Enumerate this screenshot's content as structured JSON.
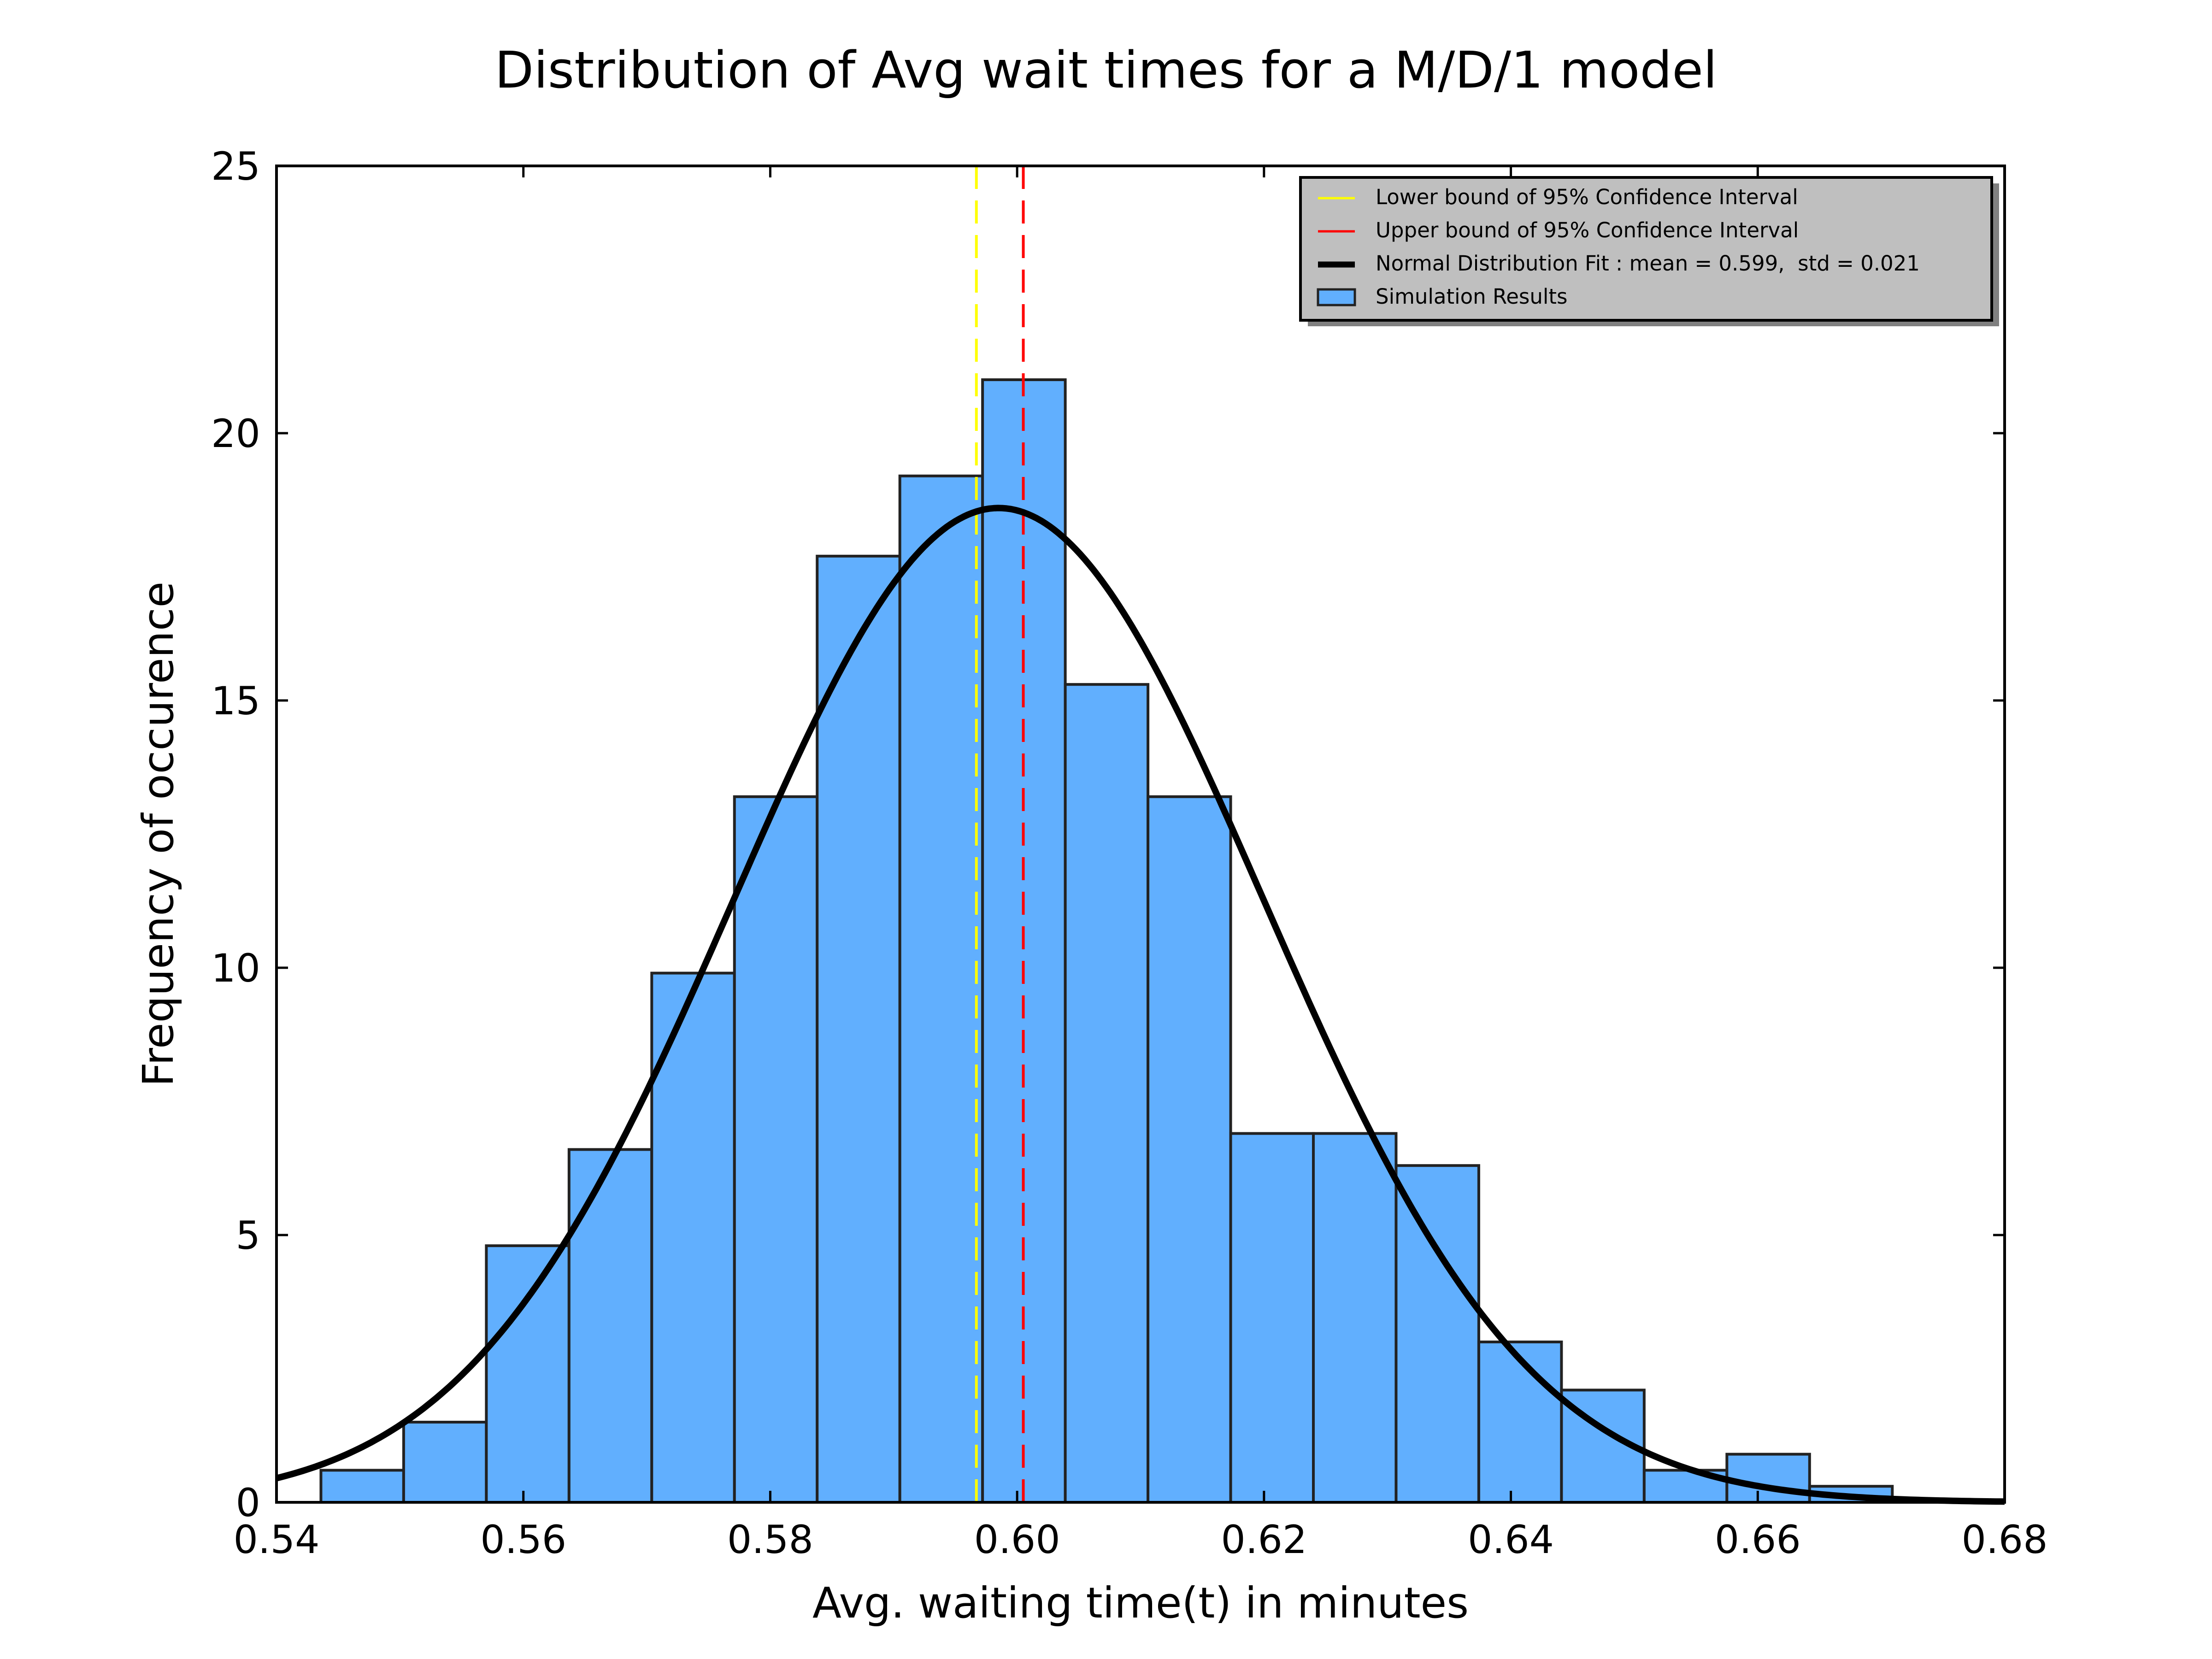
{
  "chart_data": {
    "type": "bar",
    "title": "Distribution of Avg wait times for a M/D/1 model",
    "xlabel": "Avg. waiting time(t) in minutes",
    "ylabel": "Frequency of occurence",
    "xlim": [
      0.54,
      0.68
    ],
    "ylim": [
      0,
      25
    ],
    "xticks": [
      "0.54",
      "0.56",
      "0.58",
      "0.60",
      "0.62",
      "0.64",
      "0.66",
      "0.68"
    ],
    "yticks": [
      "0",
      "5",
      "10",
      "15",
      "20",
      "25"
    ],
    "grid": false,
    "legend_position": "top-right",
    "histogram": {
      "name": "Simulation Results",
      "color": "#61affe",
      "bin_edges": [
        0.5436,
        0.5503,
        0.557,
        0.5637,
        0.5704,
        0.5771,
        0.5838,
        0.5905,
        0.5972,
        0.6039,
        0.6106,
        0.6173,
        0.624,
        0.6307,
        0.6374,
        0.6441,
        0.6508,
        0.6575,
        0.6642,
        0.6709
      ],
      "values": [
        0.6,
        1.5,
        4.8,
        6.6,
        9.9,
        13.2,
        17.7,
        19.2,
        21.0,
        15.3,
        13.2,
        6.9,
        6.9,
        6.3,
        3.0,
        2.1,
        0.6,
        0.9,
        0.3
      ]
    },
    "normal_fit": {
      "name": "Normal Distribution Fit : mean = 0.599,  std = 0.021",
      "color": "#000000",
      "mean": 0.5985,
      "std": 0.02145,
      "peak": 18.6
    },
    "ci_lines": [
      {
        "name": "Lower bound of 95% Confidence Interval",
        "x": 0.5967,
        "color": "#ffff00"
      },
      {
        "name": "Upper bound of 95% Confidence Interval",
        "x": 0.6005,
        "color": "#ff0000"
      }
    ]
  }
}
